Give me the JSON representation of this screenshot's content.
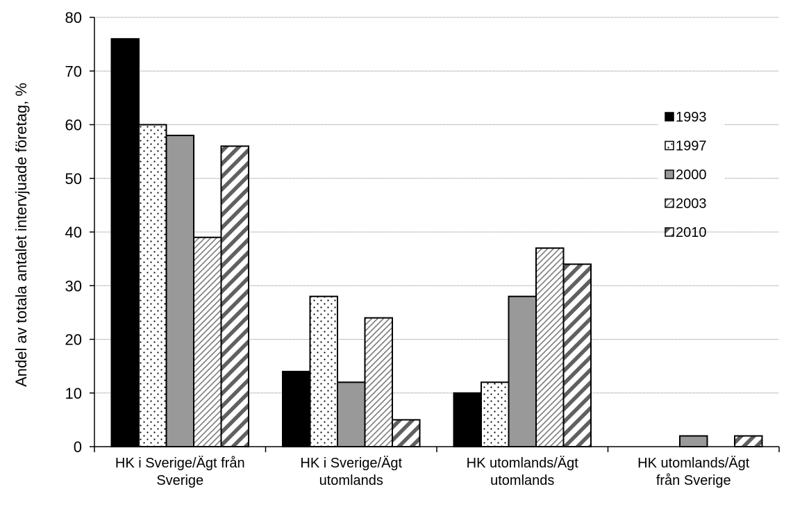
{
  "chart_data": {
    "type": "bar",
    "title": "",
    "xlabel": "",
    "ylabel": "Andel av totala antalet intervjuade företag, %",
    "ylim": [
      0,
      80
    ],
    "yticks": [
      0,
      10,
      20,
      30,
      40,
      50,
      60,
      70,
      80
    ],
    "grid": "horizontal dotted",
    "legend_position": "right",
    "categories": [
      [
        "HK i Sverige/Ägt från",
        "Sverige"
      ],
      [
        "HK i Sverige/Ägt",
        "utomlands"
      ],
      [
        "HK utomlands/Ägt",
        "utomlands"
      ],
      [
        "HK utomlands/Ägt",
        "från Sverige"
      ]
    ],
    "series": [
      {
        "name": "1993",
        "values": [
          76,
          14,
          10,
          0
        ],
        "pattern": "solid-black"
      },
      {
        "name": "1997",
        "values": [
          60,
          28,
          12,
          0
        ],
        "pattern": "dots"
      },
      {
        "name": "2000",
        "values": [
          58,
          12,
          28,
          2
        ],
        "pattern": "solid-gray"
      },
      {
        "name": "2003",
        "values": [
          39,
          24,
          37,
          0
        ],
        "pattern": "thin-diagonal"
      },
      {
        "name": "2010",
        "values": [
          56,
          5,
          34,
          2
        ],
        "pattern": "thick-diagonal"
      }
    ],
    "colors": {
      "black": "#000000",
      "gray": "#999999",
      "white": "#ffffff",
      "grid": "#808080"
    }
  }
}
